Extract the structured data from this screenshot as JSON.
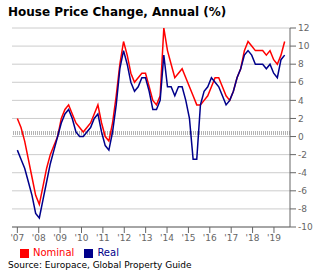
{
  "chart_data": {
    "type": "line",
    "title": "House Price Change, Annual (%)",
    "source": "Source: Europace, Global Property Guide",
    "x": [
      2007,
      2007.1712,
      2007.3425,
      2007.5137,
      2007.6849,
      2007.8562,
      2008.0274,
      2008.1986,
      2008.3699,
      2008.5411,
      2008.7123,
      2008.8836,
      2009.0548,
      2009.226,
      2009.3973,
      2009.5685,
      2009.7397,
      2009.911,
      2010.0822,
      2010.2534,
      2010.4247,
      2010.5959,
      2010.7671,
      2010.9384,
      2011.1096,
      2011.2808,
      2011.4521,
      2011.6233,
      2011.7945,
      2011.9658,
      2012.137,
      2012.3082,
      2012.4795,
      2012.6507,
      2012.8219,
      2012.9932,
      2013.1644,
      2013.3356,
      2013.5068,
      2013.6781,
      2013.8493,
      2014.0205,
      2014.1918,
      2014.363,
      2014.5342,
      2014.7055,
      2014.8767,
      2015.0479,
      2015.2192,
      2015.3904,
      2015.5616,
      2015.7329,
      2015.9041,
      2016.0753,
      2016.2466,
      2016.4178,
      2016.589,
      2016.7603,
      2016.9315,
      2017.1027,
      2017.274,
      2017.4452,
      2017.6164,
      2017.7877,
      2017.9589,
      2018.1301,
      2018.3014,
      2018.4726,
      2018.6438,
      2018.8151,
      2018.9863,
      2019.1575,
      2019.3288,
      2019.5
    ],
    "series": [
      {
        "name": "Nominal",
        "color": "#FF0000",
        "values": [
          2.0,
          1.0,
          -0.5,
          -2.5,
          -4.5,
          -6.5,
          -7.5,
          -5.5,
          -3.5,
          -2.0,
          -1.0,
          0.0,
          2.0,
          3.0,
          3.5,
          2.5,
          1.5,
          1.0,
          0.5,
          1.0,
          1.5,
          2.5,
          3.5,
          1.5,
          0.0,
          -0.5,
          1.5,
          4.5,
          8.0,
          10.5,
          9.0,
          7.0,
          6.0,
          6.5,
          7.0,
          7.0,
          5.5,
          4.0,
          3.5,
          4.5,
          12.0,
          9.5,
          8.0,
          6.5,
          7.0,
          7.5,
          6.5,
          5.5,
          4.5,
          3.5,
          3.5,
          4.0,
          4.5,
          5.5,
          6.5,
          6.5,
          5.5,
          4.5,
          4.0,
          5.0,
          6.5,
          7.5,
          9.5,
          10.5,
          10.0,
          9.5,
          9.5,
          9.5,
          9.0,
          9.5,
          8.5,
          8.0,
          9.0,
          10.5
        ]
      },
      {
        "name": "Real",
        "color": "#00008B",
        "values": [
          -1.5,
          -2.5,
          -3.5,
          -5.0,
          -6.5,
          -8.5,
          -9.0,
          -7.0,
          -5.0,
          -3.0,
          -1.5,
          0.0,
          1.5,
          2.5,
          3.0,
          2.0,
          0.5,
          0.0,
          0.0,
          0.5,
          1.0,
          2.0,
          2.5,
          0.5,
          -1.0,
          -1.5,
          0.5,
          3.5,
          7.5,
          9.5,
          8.0,
          6.0,
          5.0,
          5.5,
          6.5,
          6.5,
          5.0,
          3.0,
          3.0,
          4.0,
          9.0,
          5.5,
          5.5,
          4.5,
          5.5,
          5.5,
          4.0,
          2.0,
          -2.5,
          -2.5,
          3.5,
          5.0,
          5.5,
          6.5,
          6.0,
          5.5,
          4.5,
          3.5,
          4.0,
          5.0,
          6.5,
          7.5,
          9.0,
          9.5,
          9.0,
          8.0,
          8.0,
          8.0,
          7.5,
          8.0,
          7.0,
          6.5,
          8.5,
          9.0
        ]
      }
    ],
    "reference_line": 0.4,
    "xlim": [
      2006.75,
      2019.75
    ],
    "xticks": [
      {
        "value": 2007,
        "label": "'07"
      },
      {
        "value": 2008,
        "label": "'08"
      },
      {
        "value": 2009,
        "label": "'09"
      },
      {
        "value": 2010,
        "label": "'10"
      },
      {
        "value": 2011,
        "label": "'11"
      },
      {
        "value": 2012,
        "label": "'12"
      },
      {
        "value": 2013,
        "label": "'13"
      },
      {
        "value": 2014,
        "label": "'14"
      },
      {
        "value": 2015,
        "label": "'15"
      },
      {
        "value": 2016,
        "label": "'16"
      },
      {
        "value": 2017,
        "label": "'17"
      },
      {
        "value": 2018,
        "label": "'18"
      },
      {
        "value": 2019,
        "label": "'19"
      }
    ],
    "ylim": [
      -10,
      12
    ],
    "yticks": [
      -10,
      -8,
      -6,
      -4,
      -2,
      0,
      2,
      4,
      6,
      8,
      10,
      12
    ],
    "grid": true,
    "legend": "bottom"
  }
}
